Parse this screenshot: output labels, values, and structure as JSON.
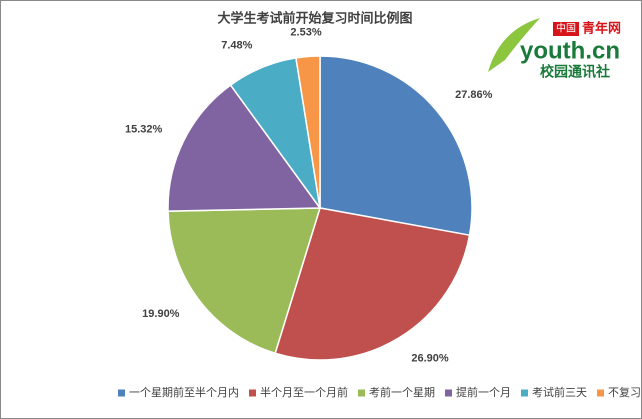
{
  "chart_data": {
    "type": "pie",
    "title": "大学生考试前开始复习时间比例图",
    "categories": [
      "一个星期前至半个月内",
      "半个月至一个月前",
      "考前一个星期",
      "提前一个月",
      "考试前三天",
      "不复习"
    ],
    "values": [
      27.86,
      26.9,
      19.9,
      15.32,
      7.48,
      2.53
    ],
    "value_labels": [
      "27.86%",
      "26.90%",
      "19.90%",
      "15.32%",
      "7.48%",
      "2.53%"
    ],
    "colors": [
      "#4f81bd",
      "#c0504d",
      "#9bbb59",
      "#8064a2",
      "#4bacc6",
      "#f79646"
    ],
    "legend": "bottom"
  },
  "logo": {
    "brand": "中国",
    "name": "青年网",
    "domain": "youth.cn",
    "subtitle": "校园通讯社"
  }
}
